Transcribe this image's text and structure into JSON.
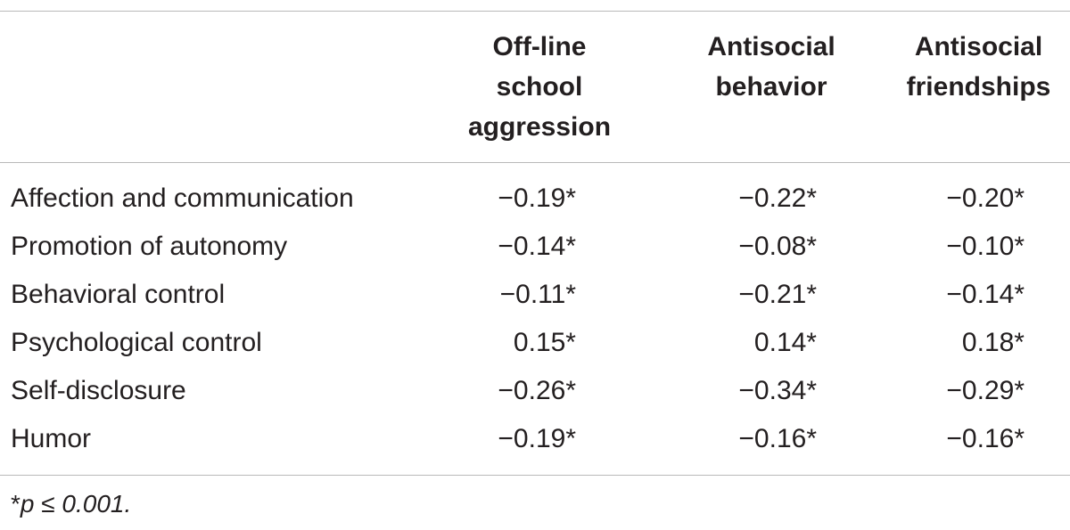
{
  "table": {
    "columns": [
      "Off-line\nschool\naggression",
      "Antisocial\nbehavior",
      "Antisocial\nfriendships"
    ],
    "rows": [
      {
        "label": "Affection and communication",
        "values": [
          "−0.19*",
          "−0.22*",
          "−0.20*"
        ]
      },
      {
        "label": "Promotion of autonomy",
        "values": [
          "−0.14*",
          "−0.08*",
          "−0.10*"
        ]
      },
      {
        "label": "Behavioral control",
        "values": [
          "−0.11*",
          "−0.21*",
          "−0.14*"
        ]
      },
      {
        "label": "Psychological control",
        "values": [
          "0.15*",
          "0.14*",
          "0.18*"
        ]
      },
      {
        "label": "Self-disclosure",
        "values": [
          "−0.26*",
          "−0.34*",
          "−0.29*"
        ]
      },
      {
        "label": "Humor",
        "values": [
          "−0.19*",
          "−0.16*",
          "−0.16*"
        ]
      }
    ]
  },
  "footnote": {
    "star": "*",
    "condition": "p ≤ 0.001."
  }
}
